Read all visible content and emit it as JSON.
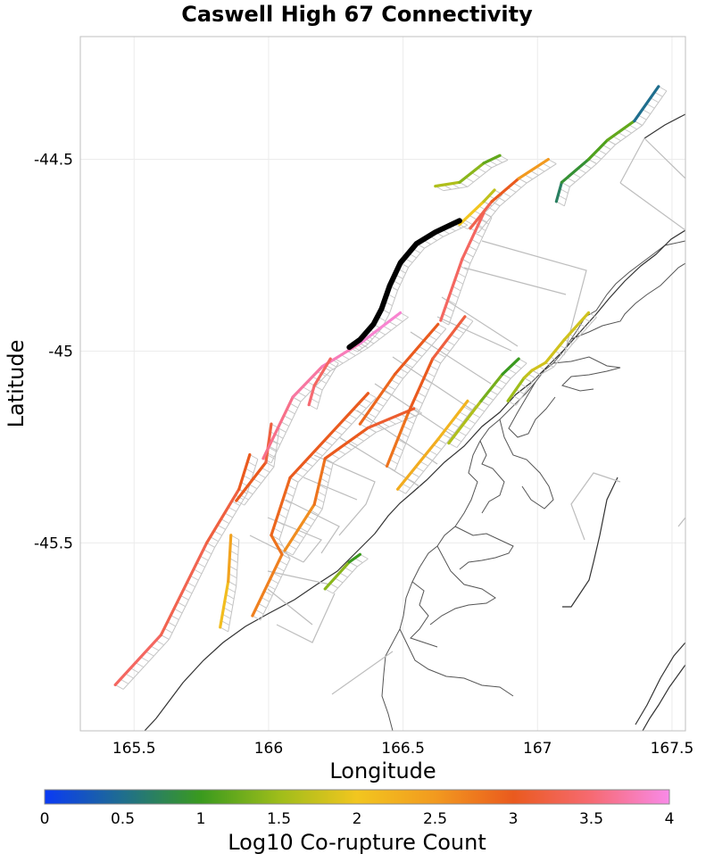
{
  "title": "Caswell High 67 Connectivity",
  "chart_data": {
    "type": "map",
    "title": "Caswell High 67 Connectivity",
    "xlabel": "Longitude",
    "ylabel": "Latitude",
    "xlim": [
      165.3,
      167.55
    ],
    "ylim": [
      -45.99,
      -44.18
    ],
    "x_ticks": [
      165.5,
      166,
      166.5,
      167,
      167.5
    ],
    "y_ticks": [
      -44.5,
      -45,
      -45.5
    ],
    "x_tick_labels": [
      "165.5",
      "166",
      "166.5",
      "167",
      "167.5"
    ],
    "y_tick_labels": [
      "-44.5",
      "-45",
      "-45.5"
    ],
    "colorbar": {
      "label": "Log10 Co-rupture Count",
      "range": [
        0,
        4
      ],
      "ticks": [
        0,
        0.5,
        1,
        1.5,
        2,
        2.5,
        3,
        3.5,
        4
      ],
      "tick_labels": [
        "0",
        "0.5",
        "1",
        "1.5",
        "2",
        "2.5",
        "3",
        "3.5",
        "4"
      ],
      "stops": [
        {
          "v": 0,
          "color": "#0a3af5"
        },
        {
          "v": 0.5,
          "color": "#1f6e8e"
        },
        {
          "v": 1,
          "color": "#3a9a1e"
        },
        {
          "v": 1.5,
          "color": "#9ebd1a"
        },
        {
          "v": 2,
          "color": "#f2c61f"
        },
        {
          "v": 2.5,
          "color": "#f29a1f"
        },
        {
          "v": 3,
          "color": "#ea5a1e"
        },
        {
          "v": 3.5,
          "color": "#f66a72"
        },
        {
          "v": 4,
          "color": "#f98ae8"
        }
      ]
    },
    "target_fault": {
      "name": "Caswell High 67",
      "color": "#000000",
      "trace": [
        [
          166.3,
          -44.99
        ],
        [
          166.34,
          -44.97
        ],
        [
          166.39,
          -44.93
        ],
        [
          166.42,
          -44.89
        ],
        [
          166.45,
          -44.83
        ],
        [
          166.47,
          -44.8
        ],
        [
          166.49,
          -44.77
        ],
        [
          166.55,
          -44.72
        ],
        [
          166.62,
          -44.69
        ],
        [
          166.71,
          -44.66
        ]
      ]
    },
    "ruptures": [
      {
        "id": "caswell-segment-sw",
        "values": [
          3.4,
          3.3,
          3.2,
          3.0,
          2.9
        ],
        "trace": [
          [
            165.43,
            -45.87
          ],
          [
            165.6,
            -45.74
          ],
          [
            165.77,
            -45.5
          ],
          [
            165.89,
            -45.36
          ],
          [
            165.93,
            -45.27
          ]
        ]
      },
      {
        "id": "caswell-mid-inner",
        "values": [
          3.0,
          3.2,
          3.3
        ],
        "trace": [
          [
            165.88,
            -45.39
          ],
          [
            165.99,
            -45.29
          ],
          [
            166.01,
            -45.19
          ]
        ]
      },
      {
        "id": "caswell-mid-outer",
        "values": [
          3.6,
          3.7,
          3.8,
          3.9
        ],
        "trace": [
          [
            165.98,
            -45.28
          ],
          [
            166.09,
            -45.12
          ],
          [
            166.2,
            -45.04
          ],
          [
            166.34,
            -44.98
          ],
          [
            166.49,
            -44.9
          ]
        ]
      },
      {
        "id": "fiordland-branch-upper",
        "values": [
          3.5,
          3.4,
          3.4
        ],
        "trace": [
          [
            166.15,
            -45.14
          ],
          [
            166.17,
            -45.09
          ],
          [
            166.23,
            -45.02
          ]
        ]
      },
      {
        "id": "fiordland-branch-lower",
        "values": [
          2.1,
          2.4,
          2.6
        ],
        "trace": [
          [
            165.82,
            -45.72
          ],
          [
            165.85,
            -45.6
          ],
          [
            165.86,
            -45.48
          ]
        ]
      },
      {
        "id": "secretary-fault",
        "values": [
          2.7,
          2.8,
          2.9,
          3.0
        ],
        "trace": [
          [
            165.94,
            -45.69
          ],
          [
            166.05,
            -45.53
          ],
          [
            166.01,
            -45.48
          ],
          [
            166.08,
            -45.33
          ],
          [
            166.37,
            -45.11
          ]
        ]
      },
      {
        "id": "doubtful-trace",
        "values": [
          2.6,
          2.8,
          3.0,
          3.1
        ],
        "trace": [
          [
            166.06,
            -45.52
          ],
          [
            166.17,
            -45.4
          ],
          [
            166.21,
            -45.28
          ],
          [
            166.37,
            -45.2
          ],
          [
            166.54,
            -45.15
          ]
        ]
      },
      {
        "id": "thompson-trace",
        "values": [
          2.9,
          3.0,
          3.1
        ],
        "trace": [
          [
            166.34,
            -45.19
          ],
          [
            166.47,
            -45.06
          ],
          [
            166.63,
            -44.93
          ]
        ]
      },
      {
        "id": "bradshaw-trace",
        "values": [
          2.8,
          3.0,
          3.2
        ],
        "trace": [
          [
            166.44,
            -45.3
          ],
          [
            166.52,
            -45.16
          ],
          [
            166.61,
            -45.02
          ],
          [
            166.73,
            -44.91
          ]
        ]
      },
      {
        "id": "shelf-trace-a",
        "values": [
          2.3,
          2.2,
          2.1
        ],
        "trace": [
          [
            166.48,
            -45.36
          ],
          [
            166.63,
            -45.23
          ],
          [
            166.74,
            -45.13
          ]
        ]
      },
      {
        "id": "shelf-trace-b",
        "values": [
          1.6,
          1.3,
          1.0
        ],
        "trace": [
          [
            166.67,
            -45.24
          ],
          [
            166.79,
            -45.13
          ],
          [
            166.87,
            -45.06
          ],
          [
            166.93,
            -45.02
          ]
        ]
      },
      {
        "id": "shelf-trace-c",
        "values": [
          1.5,
          1.7,
          1.8
        ],
        "trace": [
          [
            166.89,
            -45.13
          ],
          [
            166.95,
            -45.07
          ],
          [
            166.98,
            -45.05
          ],
          [
            167.03,
            -45.03
          ],
          [
            167.1,
            -44.97
          ],
          [
            167.19,
            -44.9
          ]
        ]
      },
      {
        "id": "pacific-trace",
        "values": [
          1.4,
          1.0
        ],
        "trace": [
          [
            166.21,
            -45.62
          ],
          [
            166.3,
            -45.55
          ],
          [
            166.34,
            -45.53
          ]
        ]
      },
      {
        "id": "offshore-north",
        "values": [
          3.4,
          3.4,
          3.3
        ],
        "trace": [
          [
            166.64,
            -44.92
          ],
          [
            166.72,
            -44.76
          ],
          [
            166.8,
            -44.64
          ]
        ]
      },
      {
        "id": "offshore-north-b",
        "values": [
          3.3,
          3.0,
          2.5,
          2.2
        ],
        "trace": [
          [
            166.75,
            -44.68
          ],
          [
            166.83,
            -44.61
          ],
          [
            166.93,
            -44.55
          ],
          [
            167.04,
            -44.5
          ]
        ]
      },
      {
        "id": "offshore-north-c",
        "values": [
          2.0,
          1.7,
          1.3
        ],
        "trace": [
          [
            166.71,
            -44.67
          ],
          [
            166.8,
            -44.61
          ],
          [
            166.84,
            -44.58
          ]
        ]
      },
      {
        "id": "offshore-cape",
        "values": [
          1.6,
          1.4,
          1.2,
          0.8
        ],
        "trace": [
          [
            166.62,
            -44.57
          ],
          [
            166.71,
            -44.56
          ],
          [
            166.8,
            -44.51
          ],
          [
            166.86,
            -44.49
          ]
        ]
      },
      {
        "id": "farewell-spit",
        "values": [
          0.7,
          0.9,
          1.1,
          1.2,
          0.5
        ],
        "trace": [
          [
            167.07,
            -44.61
          ],
          [
            167.09,
            -44.56
          ],
          [
            167.19,
            -44.5
          ],
          [
            167.26,
            -44.45
          ],
          [
            167.36,
            -44.4
          ],
          [
            167.45,
            -44.31
          ]
        ]
      }
    ]
  },
  "colorbar": {
    "label": "Log10 Co-rupture Count",
    "ticks": [
      "0",
      "0.5",
      "1",
      "1.5",
      "2",
      "2.5",
      "3",
      "3.5",
      "4"
    ]
  }
}
